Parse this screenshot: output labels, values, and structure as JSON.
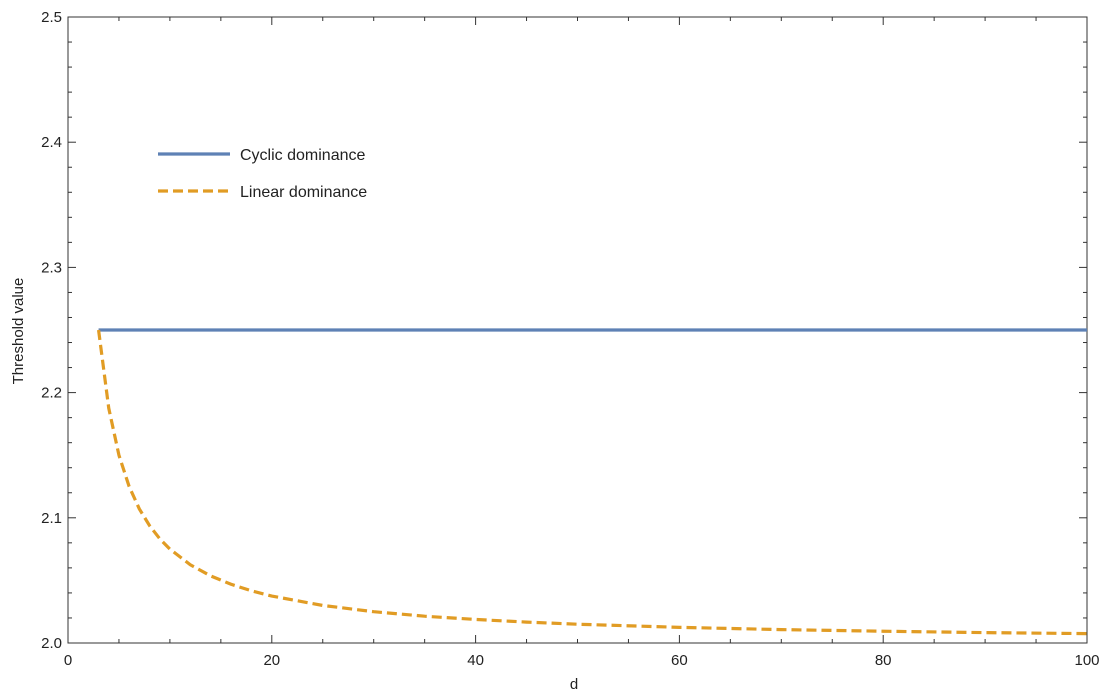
{
  "chart_data": {
    "type": "line",
    "title": "",
    "xlabel": "d",
    "ylabel": "Threshold value",
    "xlim": [
      0,
      100
    ],
    "ylim": [
      2.0,
      2.5
    ],
    "x_ticks": [
      0,
      20,
      40,
      60,
      80,
      100
    ],
    "x_tick_labels": [
      "0",
      "20",
      "40",
      "60",
      "80",
      "100"
    ],
    "y_ticks": [
      2.0,
      2.1,
      2.2,
      2.3,
      2.4,
      2.5
    ],
    "y_tick_labels": [
      "2.0",
      "2.1",
      "2.2",
      "2.3",
      "2.4",
      "2.5"
    ],
    "grid": false,
    "frame": true,
    "legend_position": "top-left",
    "series": [
      {
        "name": "Cyclic dominance",
        "color": "#5e81b5",
        "dash": "solid",
        "x": [
          3,
          10,
          20,
          30,
          40,
          50,
          60,
          70,
          80,
          90,
          100
        ],
        "y": [
          2.25,
          2.25,
          2.25,
          2.25,
          2.25,
          2.25,
          2.25,
          2.25,
          2.25,
          2.25,
          2.25
        ]
      },
      {
        "name": "Linear dominance",
        "color": "#e19c24",
        "dash": "dashed",
        "x": [
          3,
          4,
          5,
          6,
          7,
          8,
          9,
          10,
          12,
          14,
          16,
          18,
          20,
          25,
          30,
          35,
          40,
          45,
          50,
          60,
          70,
          80,
          90,
          100
        ],
        "y": [
          2.25,
          2.1875,
          2.15,
          2.125,
          2.1071,
          2.0938,
          2.0833,
          2.075,
          2.0625,
          2.0536,
          2.0469,
          2.0417,
          2.0375,
          2.03,
          2.025,
          2.0214,
          2.0188,
          2.0167,
          2.015,
          2.0125,
          2.0107,
          2.0094,
          2.0083,
          2.0075
        ]
      }
    ]
  }
}
